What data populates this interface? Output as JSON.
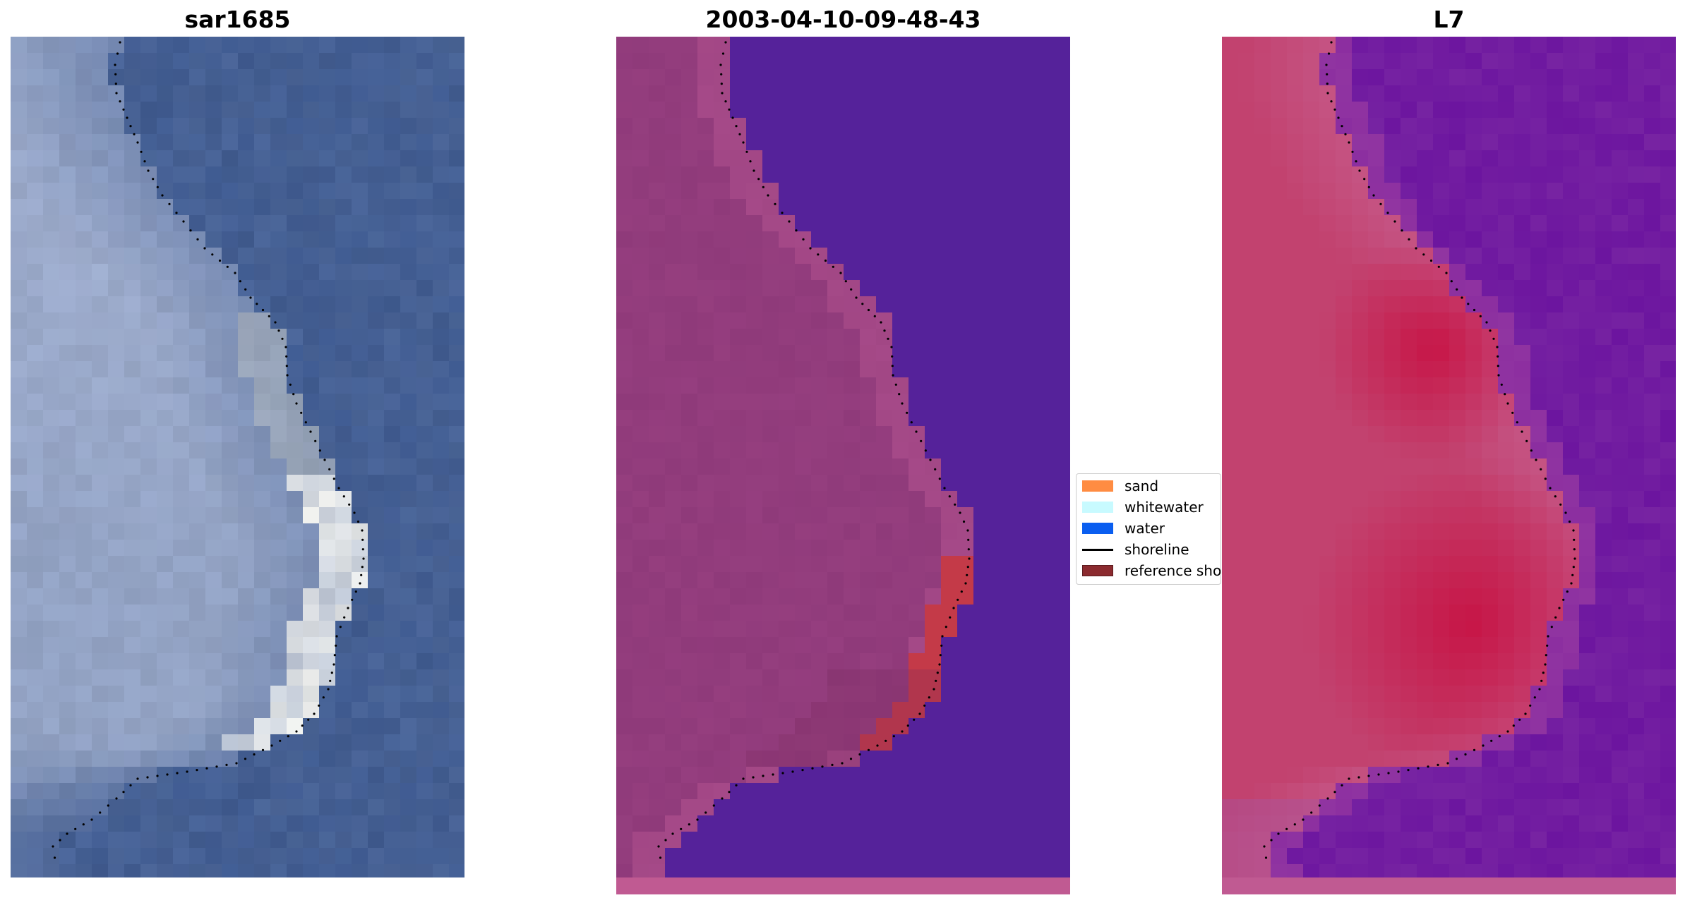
{
  "panels": [
    {
      "title": "sar1685"
    },
    {
      "title": "2003-04-10-09-48-43"
    },
    {
      "title": "L7"
    }
  ],
  "legend": {
    "items": [
      {
        "label": "sand",
        "color": "#ff8c42"
      },
      {
        "label": "whitewater",
        "color": "#c8faff"
      },
      {
        "label": "water",
        "color": "#0a5ef0"
      },
      {
        "label": "shoreline",
        "color": "#000000"
      },
      {
        "label": "reference shoreline",
        "color": "#8b2a2f"
      }
    ]
  },
  "colors": {
    "rgb_sea": "#3f5a8f",
    "rgb_land": "#93a3c4",
    "class_land": "#8f3a7a",
    "class_water": "#55229a",
    "class_sand": "#c43a48",
    "mndwi_low": "#c2426f",
    "mndwi_high": "#6c159f"
  }
}
